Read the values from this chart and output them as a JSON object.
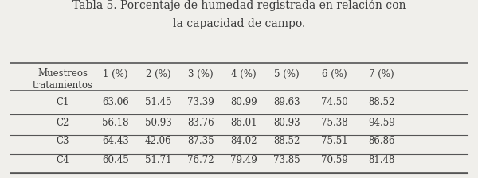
{
  "title_bold": "Tabla 5.",
  "title_regular": " Porcentaje de humedad registrada en relación con\nla capacidad de campo.",
  "col_header": [
    "Muestreos\ntratamientos",
    "1 (%)",
    "2 (%)",
    "3 (%)",
    "4 (%)",
    "5 (%)",
    "6 (%)",
    "7 (%)"
  ],
  "rows": [
    [
      "C1",
      "63.06",
      "51.45",
      "73.39",
      "80.99",
      "89.63",
      "74.50",
      "88.52"
    ],
    [
      "C2",
      "56.18",
      "50.93",
      "83.76",
      "86.01",
      "80.93",
      "75.38",
      "94.59"
    ],
    [
      "C3",
      "64.43",
      "42.06",
      "87.35",
      "84.02",
      "88.52",
      "75.51",
      "86.86"
    ],
    [
      "C4",
      "60.45",
      "51.71",
      "76.72",
      "79.49",
      "73.85",
      "70.59",
      "81.48"
    ]
  ],
  "background_color": "#f0efeb",
  "text_color": "#3a3a3a",
  "header_fontsize": 8.5,
  "data_fontsize": 8.5,
  "title_fontsize": 10
}
